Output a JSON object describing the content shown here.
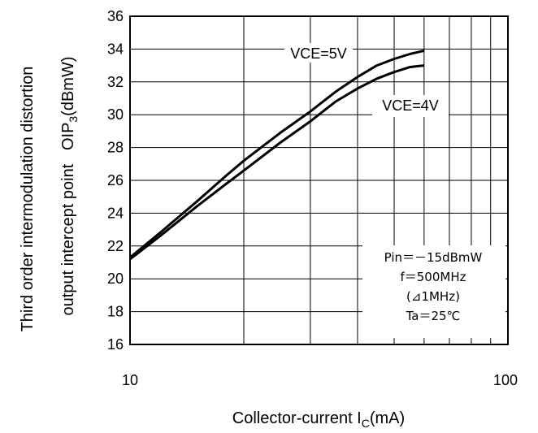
{
  "chart_data": {
    "type": "line",
    "xscale": "log",
    "xlim": [
      10,
      100
    ],
    "ylim": [
      16,
      36
    ],
    "x_ticks": [
      "10",
      "100"
    ],
    "y_ticks": [
      "16",
      "18",
      "20",
      "22",
      "24",
      "26",
      "28",
      "30",
      "32",
      "34",
      "36"
    ],
    "grid": true,
    "ylabel_line1": "Third order intermodulation distortion",
    "ylabel_line2_prefix": "output intercept point   OIP",
    "ylabel_line2_sub": "3",
    "ylabel_line2_suffix": "(dBmW)",
    "xlabel_prefix": "Collector-current I",
    "xlabel_sub": "C",
    "xlabel_suffix": "(mA)",
    "series": [
      {
        "name": "VCE=5V",
        "x": [
          10,
          12,
          15,
          18,
          20,
          25,
          30,
          35,
          40,
          45,
          50,
          55,
          60
        ],
        "y": [
          21.3,
          22.8,
          24.7,
          26.3,
          27.2,
          28.9,
          30.2,
          31.4,
          32.3,
          33.0,
          33.4,
          33.7,
          33.9
        ]
      },
      {
        "name": "VCE=4V",
        "x": [
          10,
          12,
          15,
          18,
          20,
          25,
          30,
          35,
          40,
          45,
          50,
          55,
          60
        ],
        "y": [
          21.2,
          22.6,
          24.4,
          25.8,
          26.6,
          28.3,
          29.6,
          30.8,
          31.6,
          32.2,
          32.6,
          32.9,
          33.0
        ]
      }
    ],
    "conditions": [
      "Pin＝－15dBmW",
      "f＝500MHz",
      "(⊿1MHz)",
      "Ta＝25℃"
    ]
  }
}
